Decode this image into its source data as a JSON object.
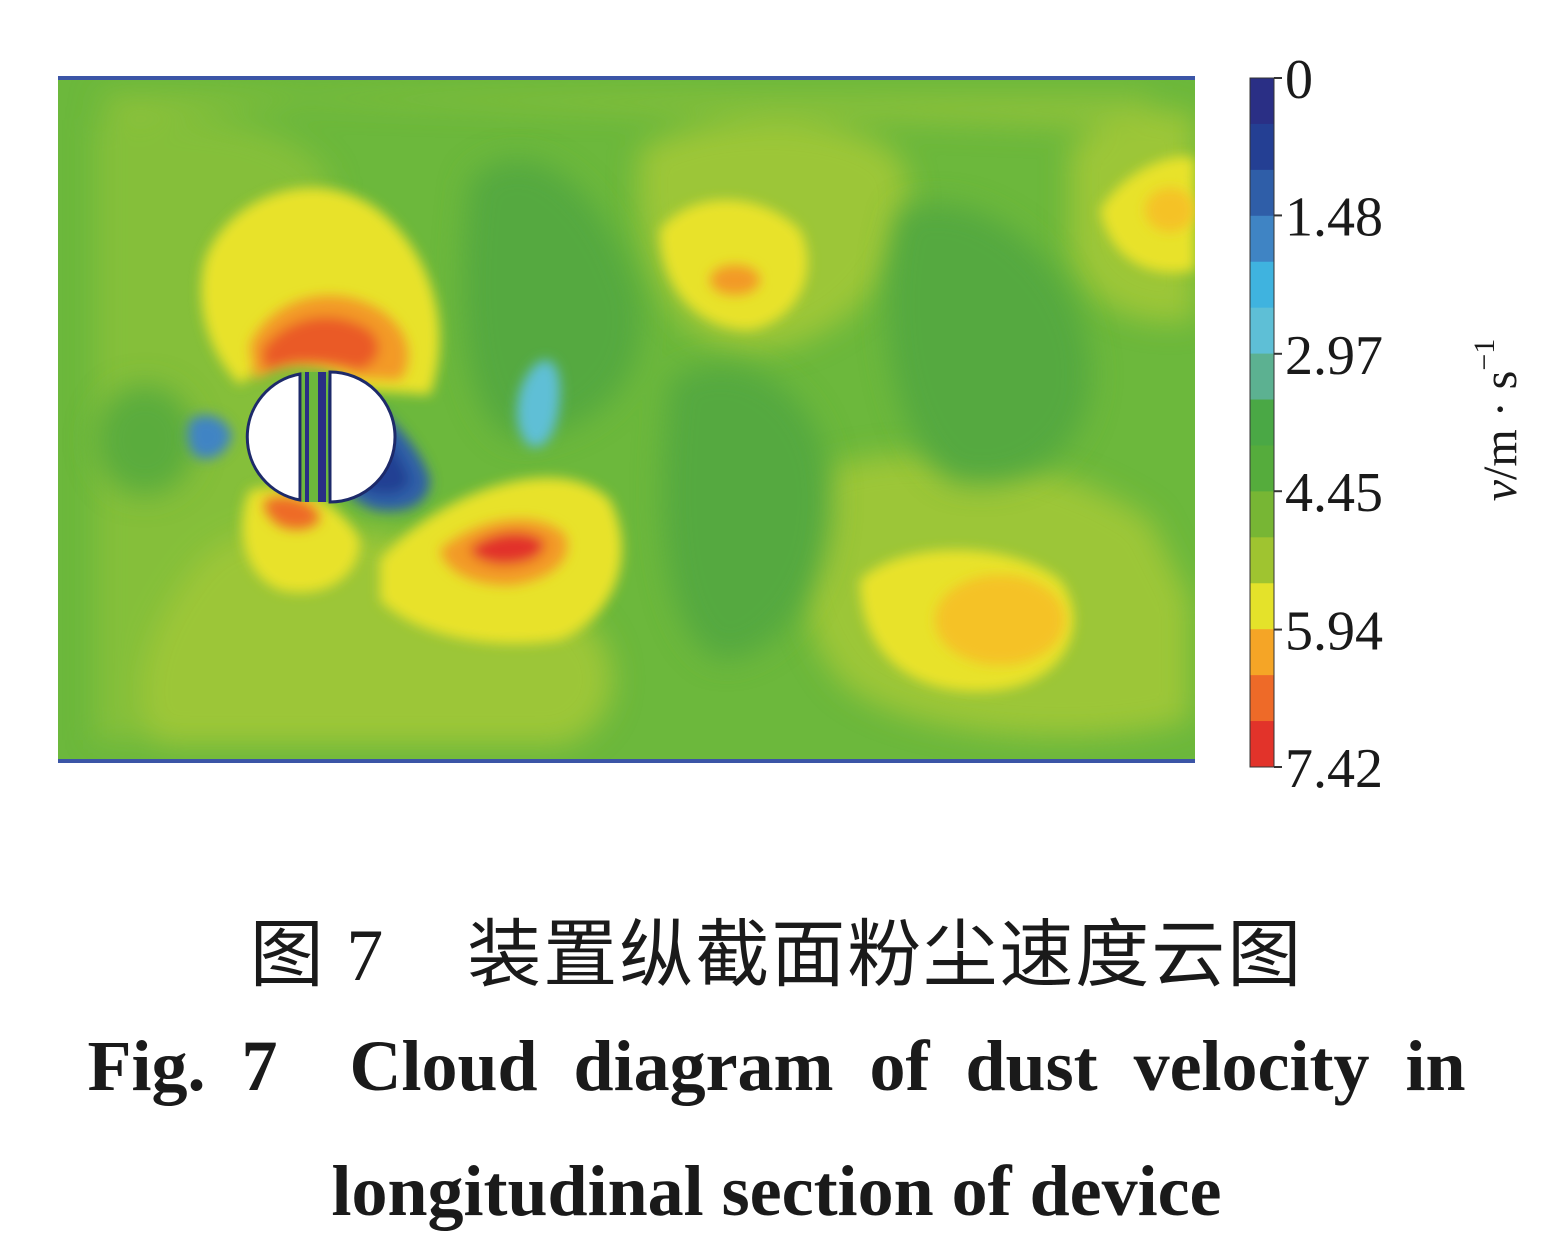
{
  "chart_data": {
    "type": "heatmap",
    "subtype": "velocity contour",
    "colorbar": {
      "label_var": "v",
      "label_unit": "/m · s",
      "label_exp": "−1",
      "tick_labels": [
        "0",
        "1.48",
        "2.97",
        "4.45",
        "5.94",
        "7.42"
      ],
      "tick_values": [
        0,
        1.48,
        2.97,
        4.45,
        5.94,
        7.42
      ],
      "range": [
        0,
        7.42
      ],
      "levels": 15,
      "colors": [
        "#2a2f85",
        "#243f93",
        "#2f5ea8",
        "#3f84c4",
        "#3fb3df",
        "#5ebfd6",
        "#5cb191",
        "#4aa845",
        "#55ac3c",
        "#77b634",
        "#9fc430",
        "#e4e22a",
        "#f5a526",
        "#ee6a28",
        "#e2332a"
      ]
    },
    "field_note_colors": {
      "background_band": "#5daf3f",
      "wall_lines": "#3b55a6"
    }
  },
  "caption": {
    "cn": "图 7    装置纵截面粉尘速度云图",
    "en_line1": "Fig.  7    Cloud  diagram  of  dust  velocity  in",
    "en_line2": "longitudinal  section  of  device"
  }
}
